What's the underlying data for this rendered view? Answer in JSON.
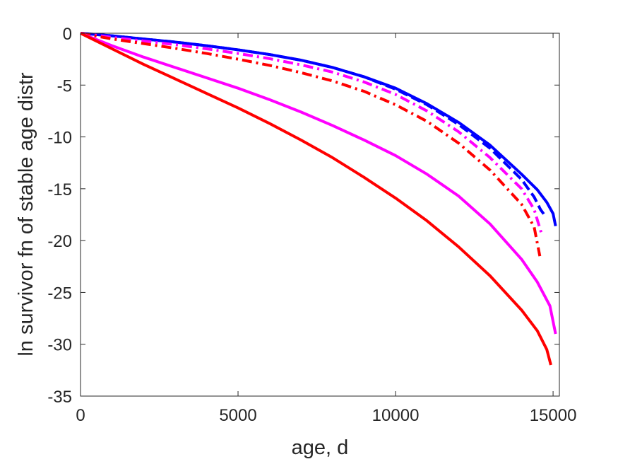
{
  "chart_data": {
    "type": "line",
    "title": "",
    "xlabel": "age, d",
    "ylabel": "ln survivor fn of stable age distr",
    "xlim": [
      0,
      15200
    ],
    "ylim": [
      -35,
      0
    ],
    "xticks": [
      0,
      5000,
      10000,
      15000
    ],
    "yticks": [
      0,
      -5,
      -10,
      -15,
      -20,
      -25,
      -30,
      -35
    ],
    "xtick_labels": [
      "0",
      "5000",
      "10000",
      "15000"
    ],
    "ytick_labels": [
      "0",
      "-5",
      "-10",
      "-15",
      "-20",
      "-25",
      "-30",
      "-35"
    ],
    "grid": false,
    "legend": null,
    "series": [
      {
        "color": "#0000ff",
        "style": "solid",
        "x": [
          0,
          1000,
          2000,
          3000,
          4000,
          5000,
          6000,
          7000,
          8000,
          9000,
          10000,
          11000,
          12000,
          13000,
          14000,
          14500,
          14800,
          15000,
          15080
        ],
        "y": [
          0,
          -0.25,
          -0.55,
          -0.85,
          -1.2,
          -1.6,
          -2.05,
          -2.6,
          -3.3,
          -4.2,
          -5.3,
          -6.8,
          -8.6,
          -10.8,
          -13.6,
          -15.1,
          -16.3,
          -17.4,
          -18.6
        ]
      },
      {
        "color": "#0000ff",
        "style": "dashed",
        "x": [
          0,
          1000,
          2000,
          3000,
          4000,
          5000,
          6000,
          7000,
          8000,
          9000,
          10000,
          11000,
          12000,
          13000,
          14000,
          14400,
          14600,
          14720
        ],
        "y": [
          0,
          -0.25,
          -0.55,
          -0.85,
          -1.2,
          -1.6,
          -2.05,
          -2.6,
          -3.3,
          -4.2,
          -5.4,
          -6.9,
          -8.8,
          -11.1,
          -14.1,
          -15.8,
          -17.0,
          -17.5
        ]
      },
      {
        "color": "#ff00ff",
        "style": "dashdot",
        "x": [
          0,
          1000,
          2000,
          3000,
          4000,
          5000,
          6000,
          7000,
          8000,
          9000,
          10000,
          11000,
          12000,
          13000,
          14000,
          14400,
          14620
        ],
        "y": [
          0,
          -0.4,
          -0.75,
          -1.1,
          -1.5,
          -1.95,
          -2.45,
          -3.05,
          -3.75,
          -4.7,
          -5.9,
          -7.5,
          -9.5,
          -12.0,
          -15.0,
          -17.0,
          -19.2
        ]
      },
      {
        "color": "#ff0000",
        "style": "dashdot",
        "x": [
          0,
          1000,
          2000,
          3000,
          4000,
          5000,
          6000,
          7000,
          8000,
          9000,
          10000,
          11000,
          12000,
          13000,
          14000,
          14400,
          14580
        ],
        "y": [
          0,
          -0.55,
          -1.0,
          -1.45,
          -1.95,
          -2.5,
          -3.1,
          -3.8,
          -4.6,
          -5.6,
          -6.9,
          -8.5,
          -10.6,
          -13.2,
          -16.5,
          -18.7,
          -21.5
        ]
      },
      {
        "color": "#ff00ff",
        "style": "solid",
        "x": [
          0,
          1000,
          2000,
          3000,
          4000,
          5000,
          6000,
          7000,
          8000,
          9000,
          10000,
          11000,
          12000,
          13000,
          14000,
          14500,
          14900,
          15080
        ],
        "y": [
          0,
          -1.2,
          -2.3,
          -3.3,
          -4.3,
          -5.3,
          -6.4,
          -7.6,
          -8.9,
          -10.3,
          -11.8,
          -13.6,
          -15.7,
          -18.4,
          -21.8,
          -24.0,
          -26.3,
          -29.0
        ]
      },
      {
        "color": "#ff0000",
        "style": "solid",
        "x": [
          0,
          1000,
          2000,
          3000,
          4000,
          5000,
          6000,
          7000,
          8000,
          9000,
          10000,
          11000,
          12000,
          13000,
          14000,
          14500,
          14800,
          14930
        ],
        "y": [
          0,
          -1.5,
          -3.0,
          -4.4,
          -5.8,
          -7.2,
          -8.7,
          -10.3,
          -12.0,
          -13.9,
          -15.9,
          -18.1,
          -20.6,
          -23.4,
          -26.7,
          -28.7,
          -30.5,
          -32.0
        ]
      }
    ]
  }
}
